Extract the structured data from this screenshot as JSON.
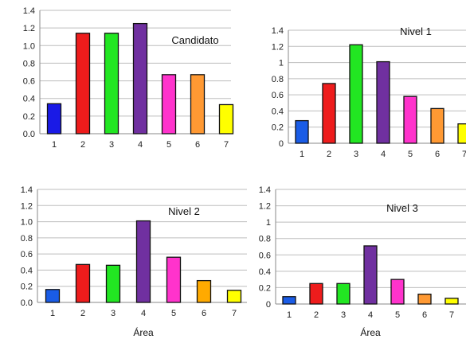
{
  "chart_data": [
    {
      "type": "bar",
      "title": "Candidato",
      "categories": [
        "1",
        "2",
        "3",
        "4",
        "5",
        "6",
        "7"
      ],
      "values": [
        0.34,
        1.14,
        1.14,
        1.25,
        0.67,
        0.67,
        0.33
      ],
      "colors": [
        "#1a1ae6",
        "#ee1c1c",
        "#22e622",
        "#7030a0",
        "#ff33cc",
        "#ff9933",
        "#ffff00"
      ],
      "ylim": [
        0,
        1.4
      ],
      "yticks": [
        "0.0",
        "0.2",
        "0.4",
        "0.6",
        "0.8",
        "1.0",
        "1.2",
        "1.4"
      ],
      "xlabel": ""
    },
    {
      "type": "bar",
      "title": "Nivel 1",
      "categories": [
        "1",
        "2",
        "3",
        "4",
        "5",
        "6",
        "7"
      ],
      "values": [
        0.28,
        0.74,
        1.22,
        1.01,
        0.58,
        0.43,
        0.24
      ],
      "colors": [
        "#1a5ce6",
        "#ee1c1c",
        "#22e622",
        "#7030a0",
        "#ff33cc",
        "#ff9933",
        "#ffff00"
      ],
      "ylim": [
        0,
        1.4
      ],
      "yticks": [
        "0",
        "0.2",
        "0.4",
        "0.6",
        "0.8",
        "1",
        "1.2",
        "1.4"
      ],
      "xlabel": ""
    },
    {
      "type": "bar",
      "title": "Nivel 2",
      "categories": [
        "1",
        "2",
        "3",
        "4",
        "5",
        "6",
        "7"
      ],
      "values": [
        0.16,
        0.47,
        0.46,
        1.01,
        0.56,
        0.27,
        0.15
      ],
      "colors": [
        "#1a5ce6",
        "#ee1c1c",
        "#22e622",
        "#7030a0",
        "#ff33cc",
        "#ffaa00",
        "#ffff00"
      ],
      "ylim": [
        0,
        1.4
      ],
      "yticks": [
        "0.0",
        "0.2",
        "0.4",
        "0.6",
        "0.8",
        "1.0",
        "1.2",
        "1.4"
      ],
      "xlabel": "Área"
    },
    {
      "type": "bar",
      "title": "Nivel 3",
      "categories": [
        "1",
        "2",
        "3",
        "4",
        "5",
        "6",
        "7"
      ],
      "values": [
        0.09,
        0.25,
        0.25,
        0.71,
        0.3,
        0.12,
        0.07
      ],
      "colors": [
        "#1a5ce6",
        "#ee1c1c",
        "#22e622",
        "#7030a0",
        "#ff33cc",
        "#ff9933",
        "#ffff00"
      ],
      "ylim": [
        0,
        1.4
      ],
      "yticks": [
        "0",
        "0.2",
        "0.4",
        "0.6",
        "0.8",
        "1",
        "1.2",
        "1.4"
      ],
      "xlabel": "Área"
    }
  ]
}
